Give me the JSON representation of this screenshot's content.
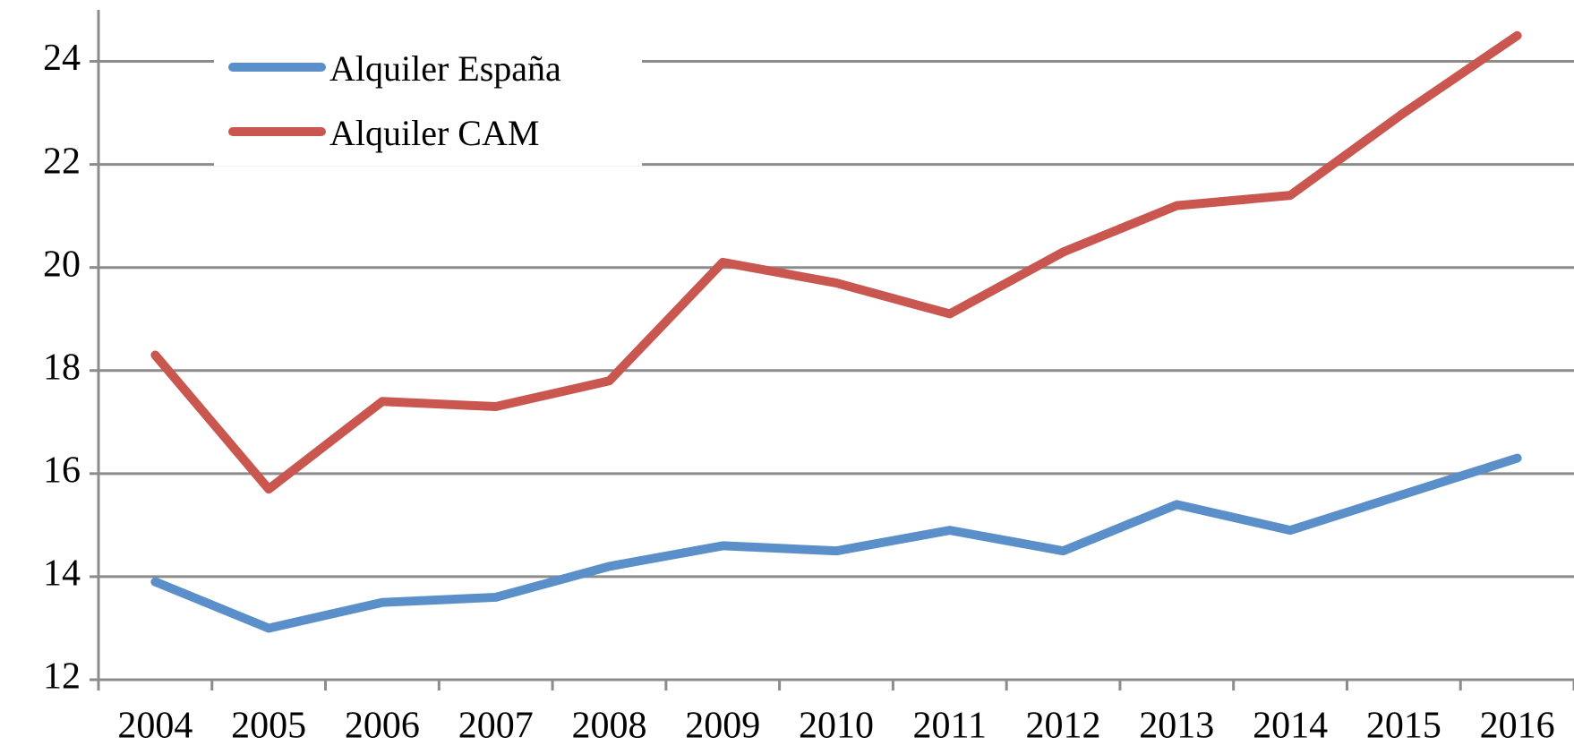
{
  "chart_data": {
    "type": "line",
    "categories": [
      "2004",
      "2005",
      "2006",
      "2007",
      "2008",
      "2009",
      "2010",
      "2011",
      "2012",
      "2013",
      "2014",
      "2015",
      "2016"
    ],
    "series": [
      {
        "name": "Alquiler España",
        "color": "#5b8fc9",
        "values": [
          13.9,
          13.0,
          13.5,
          13.6,
          14.2,
          14.6,
          14.5,
          14.9,
          14.5,
          15.4,
          14.9,
          15.6,
          16.3
        ]
      },
      {
        "name": "Alquiler CAM",
        "color": "#c9574f",
        "values": [
          18.3,
          15.7,
          17.4,
          17.3,
          17.8,
          20.1,
          19.7,
          19.1,
          20.3,
          21.2,
          21.4,
          23.0,
          24.5
        ]
      }
    ],
    "ylim": [
      12,
      25
    ],
    "yticks": [
      12,
      14,
      16,
      18,
      20,
      22,
      24
    ],
    "grid": true,
    "legend": "top-left"
  }
}
